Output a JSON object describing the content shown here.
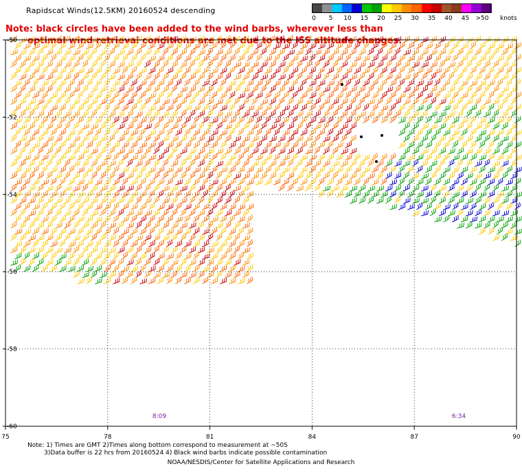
{
  "title": "Rapidscat Winds(12.5KM) 20160524 descending",
  "note_line1": "Note: black circles have been added to the wind barbs, wherever less than",
  "note_line2": "optimal wind retrieval conditions are met due to the ISS altitude changes.",
  "legend": {
    "labels": [
      "0",
      "5",
      "10",
      "15",
      "20",
      "25",
      "30",
      "35",
      "40",
      "45",
      ">50"
    ],
    "units": "knots",
    "colors": [
      "#474747",
      "#8e8e8e",
      "#00c8ff",
      "#0064ff",
      "#0000d2",
      "#00c800",
      "#00a000",
      "#ffff00",
      "#ffc800",
      "#ff8c00",
      "#ff6400",
      "#ff0000",
      "#c80000",
      "#a0522d",
      "#8b3a1a",
      "#ff00ff",
      "#9400d3",
      "#5a0080"
    ]
  },
  "axes": {
    "x_labels": [
      "75",
      "78",
      "81",
      "84",
      "87",
      "90"
    ],
    "y_labels": [
      "-50",
      "-52",
      "-54",
      "-56",
      "-58",
      "-60"
    ]
  },
  "time_labels": [
    "8:09",
    "6:34"
  ],
  "footnote_line1": "Note: 1) Times are GMT 2)Times along bottom correspond to measurement at ~50S",
  "footnote_line2": "3)Data buffer is 22 hrs from 20160524 4) Black wind barbs indicate possible contamination",
  "credit": "NOAA/NESDIS/Center for Satellite Applications and Research"
}
